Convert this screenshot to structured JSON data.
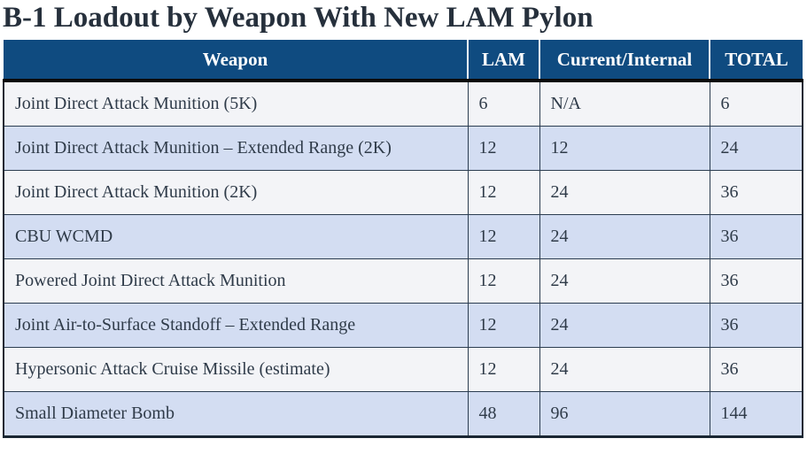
{
  "title": "B-1 Loadout by Weapon With New LAM Pylon",
  "table": {
    "columns": [
      "Weapon",
      "LAM",
      "Current/Internal",
      "TOTAL"
    ],
    "rows": [
      {
        "weapon": "Joint Direct Attack Munition (5K)",
        "lam": "6",
        "current_internal": "N/A",
        "total": "6"
      },
      {
        "weapon": "Joint Direct Attack Munition – Extended Range (2K)",
        "lam": "12",
        "current_internal": "12",
        "total": "24"
      },
      {
        "weapon": "Joint Direct Attack Munition (2K)",
        "lam": "12",
        "current_internal": "24",
        "total": "36"
      },
      {
        "weapon": "CBU WCMD",
        "lam": "12",
        "current_internal": "24",
        "total": "36"
      },
      {
        "weapon": "Powered Joint Direct Attack Munition",
        "lam": "12",
        "current_internal": "24",
        "total": "36"
      },
      {
        "weapon": "Joint Air-to-Surface Standoff – Extended Range",
        "lam": "12",
        "current_internal": "24",
        "total": "36"
      },
      {
        "weapon": "Hypersonic Attack Cruise Missile (estimate)",
        "lam": "12",
        "current_internal": "24",
        "total": "36"
      },
      {
        "weapon": "Small Diameter Bomb",
        "lam": "48",
        "current_internal": "96",
        "total": "144"
      }
    ],
    "colors": {
      "header_bg": "#0F4B80",
      "header_text": "#FFFFFF",
      "row_bg": "#F3F4F7",
      "row_alt_bg": "#D3DDF2",
      "cell_border": "#2C3D50",
      "header_underline": "#0A0A0A",
      "title_text": "#26303C",
      "body_text": "#2F3B49"
    }
  }
}
